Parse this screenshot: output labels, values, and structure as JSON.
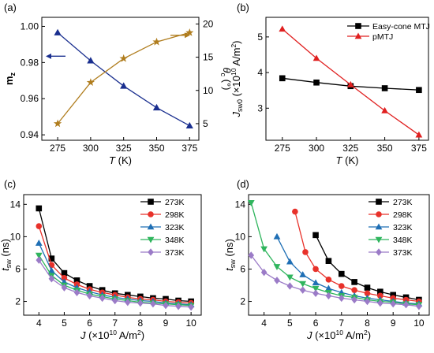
{
  "chart_data": [
    {
      "panel": "(a)",
      "type": "line",
      "x": [
        275,
        300,
        325,
        350,
        375
      ],
      "xlabel_main": "T",
      "xlabel_unit": " (K)",
      "xlim": [
        263,
        382
      ],
      "xticks": [
        275,
        300,
        325,
        350,
        375
      ],
      "ylabel_left_main": "m",
      "ylabel_left_sub": "z",
      "ylim_left": [
        0.937,
        1.005
      ],
      "yticks_left": [
        "0.94",
        "0.96",
        "0.98",
        "1.00"
      ],
      "yticks_left_values": [
        0.94,
        0.96,
        0.98,
        1.0
      ],
      "ylabel_right_main": "θ",
      "ylabel_right_sub": "c",
      "ylabel_right_unit": " (°)",
      "ylim_right": [
        2.5,
        21
      ],
      "yticks_right": [
        "5",
        "10",
        "15",
        "20"
      ],
      "yticks_right_values": [
        5,
        10,
        15,
        20
      ],
      "series": [
        {
          "axis": "left",
          "color": "#1a2f8f",
          "marker": "triangle-up",
          "values": [
            0.9965,
            0.981,
            0.967,
            0.955,
            0.945
          ],
          "arrow": "left"
        },
        {
          "axis": "right",
          "color": "#b07d1e",
          "marker": "star",
          "values": [
            5.0,
            11.2,
            14.8,
            17.3,
            18.7
          ],
          "arrow": "right"
        }
      ]
    },
    {
      "panel": "(b)",
      "type": "line",
      "x": [
        275,
        300,
        325,
        350,
        375
      ],
      "xlabel_main": "T",
      "xlabel_unit": " (K)",
      "xlim": [
        263,
        382
      ],
      "xticks": [
        275,
        300,
        325,
        350,
        375
      ],
      "ylabel_main": "J",
      "ylabel_sub": "sw0",
      "ylabel_unit": " (×10",
      "ylabel_sup": "10",
      "ylabel_tail": " A/m",
      "ylabel_sup2": "2",
      "ylabel_close": ")",
      "ylim": [
        2.1,
        5.55
      ],
      "yticks": [
        "3",
        "4",
        "5"
      ],
      "yticks_values": [
        3,
        4,
        5
      ],
      "legend_position": "top-right",
      "series": [
        {
          "name": "Easy-cone MTJ",
          "color": "#000000",
          "marker": "square",
          "values": [
            3.84,
            3.72,
            3.62,
            3.56,
            3.51
          ]
        },
        {
          "name": "pMTJ",
          "color": "#e02020",
          "marker": "triangle-up",
          "values": [
            5.22,
            4.4,
            3.66,
            2.93,
            2.25
          ]
        }
      ]
    },
    {
      "panel": "(c)",
      "type": "line",
      "x": [
        4.0,
        4.5,
        5.0,
        5.5,
        6.0,
        6.5,
        7.0,
        7.5,
        8.0,
        8.5,
        9.0,
        9.5,
        10.0
      ],
      "xlabel_main": "J",
      "xlabel_unit": " (×10",
      "xlabel_sup": "10",
      "xlabel_tail": " A/m",
      "xlabel_sup2": "2",
      "xlabel_close": ")",
      "xlim": [
        3.4,
        10.4
      ],
      "xticks": [
        4,
        5,
        6,
        7,
        8,
        9,
        10
      ],
      "ylabel_main": "t",
      "ylabel_sub": "sw",
      "ylabel_unit": " (ns)",
      "ylim": [
        0.3,
        15.2
      ],
      "yticks": [
        "2",
        "6",
        "10",
        "14"
      ],
      "yticks_values": [
        2,
        6,
        10,
        14
      ],
      "legend_position": "top-right",
      "series": [
        {
          "name": "273K",
          "color": "#000000",
          "marker": "square",
          "values": [
            13.5,
            7.3,
            5.5,
            4.6,
            3.9,
            3.4,
            3.0,
            2.8,
            2.6,
            2.4,
            2.3,
            2.1,
            2.0
          ]
        },
        {
          "name": "298K",
          "color": "#e8312a",
          "marker": "circle",
          "values": [
            11.3,
            6.5,
            4.9,
            4.1,
            3.5,
            3.1,
            2.8,
            2.5,
            2.3,
            2.2,
            2.0,
            1.9,
            1.8
          ]
        },
        {
          "name": "323K",
          "color": "#1f6fb5",
          "marker": "triangle-up",
          "values": [
            9.2,
            5.8,
            4.4,
            3.7,
            3.2,
            2.8,
            2.5,
            2.3,
            2.1,
            2.0,
            1.8,
            1.7,
            1.6
          ]
        },
        {
          "name": "348K",
          "color": "#2fb55d",
          "marker": "triangle-down",
          "values": [
            7.7,
            5.2,
            4.0,
            3.4,
            2.9,
            2.6,
            2.3,
            2.1,
            1.9,
            1.8,
            1.7,
            1.6,
            1.5
          ]
        },
        {
          "name": "373K",
          "color": "#9b7bc7",
          "marker": "diamond",
          "values": [
            7.1,
            4.8,
            3.7,
            3.1,
            2.7,
            2.4,
            2.1,
            1.9,
            1.8,
            1.7,
            1.5,
            1.4,
            1.3
          ]
        }
      ]
    },
    {
      "panel": "(d)",
      "type": "line",
      "xlabel_main": "J",
      "xlabel_unit": " (×10",
      "xlabel_sup": "10",
      "xlabel_tail": " A/m",
      "xlabel_sup2": "2",
      "xlabel_close": ")",
      "xlim": [
        3.4,
        10.4
      ],
      "xticks": [
        4,
        5,
        6,
        7,
        8,
        9,
        10
      ],
      "ylabel_main": "t",
      "ylabel_sub": "sw",
      "ylabel_unit": " (ns)",
      "ylim": [
        0.3,
        15.2
      ],
      "yticks": [
        "2",
        "6",
        "10",
        "14"
      ],
      "yticks_values": [
        2,
        6,
        10,
        14
      ],
      "legend_position": "top-right",
      "series": [
        {
          "name": "273K",
          "color": "#000000",
          "marker": "square",
          "x": [
            6.0,
            6.5,
            7.0,
            7.5,
            8.0,
            8.5,
            9.0,
            9.5,
            10.0
          ],
          "values": [
            10.2,
            7.0,
            5.4,
            4.4,
            3.7,
            3.2,
            2.8,
            2.5,
            2.2
          ]
        },
        {
          "name": "298K",
          "color": "#e8312a",
          "marker": "circle",
          "x": [
            5.2,
            5.6,
            6.0,
            6.5,
            7.0,
            7.5,
            8.0,
            8.5,
            9.0,
            9.5,
            10.0
          ],
          "values": [
            13.1,
            8.1,
            6.0,
            4.7,
            3.9,
            3.4,
            3.0,
            2.7,
            2.4,
            2.2,
            2.0
          ]
        },
        {
          "name": "323K",
          "color": "#1f6fb5",
          "marker": "triangle-up",
          "x": [
            4.5,
            5.0,
            5.5,
            6.0,
            6.5,
            7.0,
            7.5,
            8.0,
            8.5,
            9.0,
            9.5,
            10.0
          ],
          "values": [
            10.0,
            6.9,
            5.3,
            4.3,
            3.6,
            3.1,
            2.7,
            2.4,
            2.2,
            2.0,
            1.8,
            1.7
          ]
        },
        {
          "name": "348K",
          "color": "#2fb55d",
          "marker": "triangle-down",
          "x": [
            3.5,
            4.0,
            4.5,
            5.0,
            5.5,
            6.0,
            6.5,
            7.0,
            7.5,
            8.0,
            8.5,
            9.0,
            9.5,
            10.0
          ],
          "values": [
            14.2,
            8.5,
            6.3,
            5.0,
            4.2,
            3.6,
            3.1,
            2.7,
            2.5,
            2.2,
            2.0,
            1.9,
            1.7,
            1.6
          ]
        },
        {
          "name": "373K",
          "color": "#9b7bc7",
          "marker": "diamond",
          "x": [
            3.5,
            4.0,
            4.5,
            5.0,
            5.5,
            6.0,
            6.5,
            7.0,
            7.5,
            8.0,
            8.5,
            9.0,
            9.5,
            10.0
          ],
          "values": [
            7.7,
            5.6,
            4.6,
            3.9,
            3.4,
            3.0,
            2.7,
            2.4,
            2.2,
            2.0,
            1.8,
            1.7,
            1.6,
            1.4
          ]
        }
      ]
    }
  ]
}
